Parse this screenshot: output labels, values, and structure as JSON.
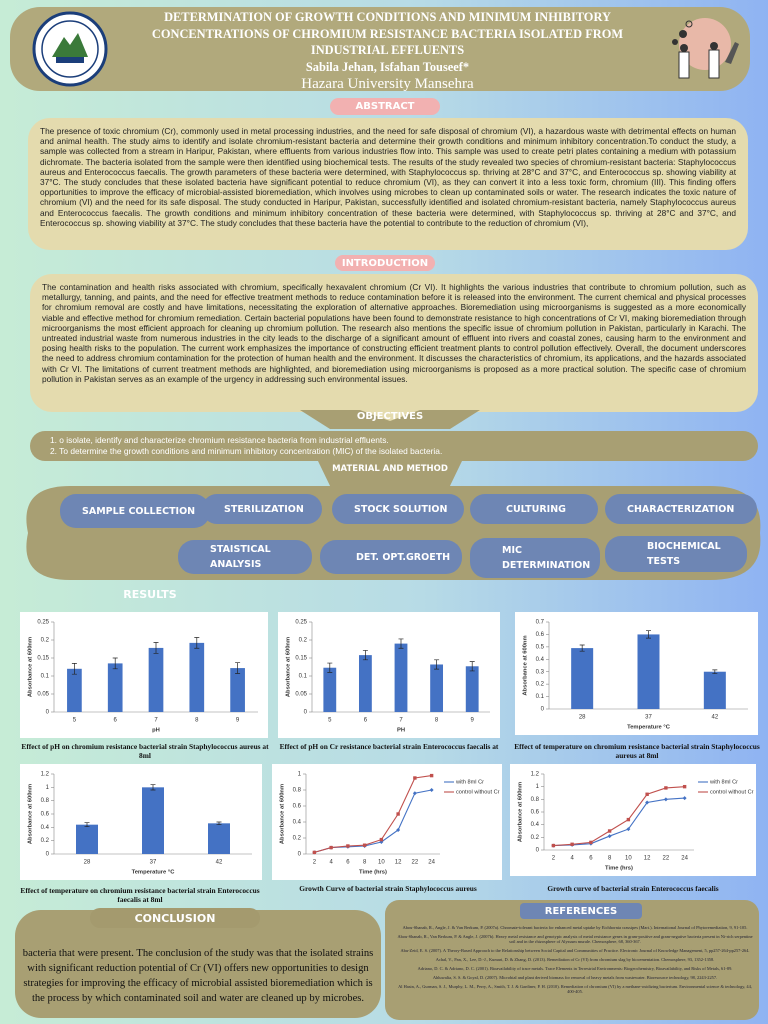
{
  "header": {
    "title_lines": [
      "DETERMINATION OF GROWTH CONDITIONS AND MINIMUM INHIBITORY",
      "CONCENTRATIONS OF CHROMIUM RESISTANCE BACTERIA ISOLATED FROM",
      "INDUSTRIAL EFFLUENTS"
    ],
    "authors": "Sabila Jehan, Isfahan Touseef*",
    "university": "Hazara University Mansehra"
  },
  "abstract": {
    "heading": "ABSTRACT",
    "text": "The presence of toxic chromium (Cr), commonly used in metal processing industries, and the need for safe disposal of chromium (VI), a hazardous waste with detrimental effects on human and animal health. The study aims to identify and isolate chromium-resistant bacteria and determine their growth conditions and minimum inhibitory concentration.To conduct the study, a sample was collected from a stream in Haripur, Pakistan, where effluents from various industries flow into. This sample was used to create petri plates containing a medium with potassium dichromate. The bacteria isolated from the sample were then identified using biochemical tests. The results of the study revealed two species of chromium-resistant bacteria: Staphylococcus aureus and Enterococcus faecalis. The growth parameters of these bacteria were determined, with Staphylococcus sp. thriving at 28°C and 37°C, and Enterococcus sp. showing viability at 37°C. The study concludes that these isolated bacteria have significant potential to reduce chromium (VI), as they can convert it into a less toxic form, chromium (III). This finding offers opportunities to improve the efficacy of microbial-assisted bioremediation, which involves using microbes to clean up contaminated soils or water. The research indicates the toxic nature of chromium (VI) and the need for its safe disposal. The study conducted in Haripur, Pakistan, successfully identified and isolated chromium-resistant bacteria, namely Staphylococcus aureus and Enterococcus faecalis. The growth conditions and minimum inhibitory concentration of these bacteria were determined, with Staphylococcus sp. thriving at 28°C and 37°C, and Enterococcus sp. showing viability at 37°C. The study concludes that these bacteria have the potential to contribute to the reduction of chromium (VI),"
  },
  "introduction": {
    "heading": "INTRODUCTION",
    "text": "The contamination and health risks associated with chromium, specifically hexavalent chromium (Cr VI). It highlights the various industries that contribute to chromium pollution, such as metallurgy, tanning, and paints, and the need for effective treatment methods to reduce contamination before it is released into the environment. The current chemical and physical processes for chromium removal are costly and have limitations, necessitating the exploration of alternative approaches. Bioremediation using microorganisms is suggested as a more economically viable and effective method for chromium remediation. Certain bacterial populations have been found to demonstrate resistance to high concentrations of Cr VI, making bioremediation through microorganisms the most efficient approach for cleaning up chromium pollution. The research also mentions the specific issue of chromium pollution in Pakistan, particularly in Karachi. The untreated industrial waste from numerous industries in the city leads to the discharge of a significant amount of effluent into rivers and coastal zones, causing harm to the environment and posing health risks to the population. The current work emphasizes the importance of constructing efficient treatment plants to control pollution effectively. Overall, the document underscores the need to address chromium contamination for the protection of human health and the environment. It discusses the characteristics of chromium, its applications, and the hazards associated with Cr VI. The limitations of current treatment methods are highlighted, and bioremediation using microorganisms is proposed as a more practical solution. The specific case of chromium pollution in Pakistan serves as an example of the urgency in addressing such environmental issues."
  },
  "objectives": {
    "heading": "OBJECTIVES",
    "items": [
      "1. o isolate, identify and characterize chromium resistance bacteria from industrial effluents.",
      "2. To determine the growth conditions and minimum inhibitory concentration (MIC) of the isolated bacteria."
    ]
  },
  "method": {
    "heading": "MATERIAL AND METHOD",
    "steps": [
      "SAMPLE COLLECTION",
      "STERILIZATION",
      "STOCK SOLUTION",
      "CULTURING",
      "CHARACTERIZATION",
      "STAISTICAL ANALYSIS",
      "DET. OPT.GROETH",
      "MIC DETERMINATION",
      "BIOCHEMICAL TESTS"
    ]
  },
  "results": {
    "heading": "RESULTS"
  },
  "chart_data": [
    {
      "type": "bar",
      "categories": [
        "5",
        "6",
        "7",
        "8",
        "9"
      ],
      "values": [
        0.12,
        0.135,
        0.178,
        0.192,
        0.122
      ],
      "errors": [
        0.015,
        0.015,
        0.015,
        0.015,
        0.015
      ],
      "color": "#4472c4",
      "ylim": [
        0,
        0.25
      ],
      "yticks": [
        0,
        0.05,
        0.1,
        0.15,
        0.2,
        0.25
      ],
      "x_label": "pH",
      "y_label": "Absorbance at 600nm",
      "caption": "Effect of pH on chromium resistance bacterial strain Staphylococcus aureus at 8ml"
    },
    {
      "type": "bar",
      "categories": [
        "5",
        "6",
        "7",
        "8",
        "9"
      ],
      "values": [
        0.123,
        0.158,
        0.19,
        0.132,
        0.127
      ],
      "errors": [
        0.013,
        0.013,
        0.013,
        0.013,
        0.013
      ],
      "color": "#4472c4",
      "ylim": [
        0,
        0.25
      ],
      "yticks": [
        0,
        0.05,
        0.1,
        0.15,
        0.2,
        0.25
      ],
      "x_label": "PH",
      "y_label": "Absorbance at 600nm",
      "caption": "Effect of pH on Cr resistance bacterial strain Enterococcus faecalis at"
    },
    {
      "type": "bar",
      "categories": [
        "28",
        "37",
        "42"
      ],
      "values": [
        0.49,
        0.6,
        0.3
      ],
      "errors": [
        0.025,
        0.03,
        0.015
      ],
      "color": "#4472c4",
      "ylim": [
        0,
        0.7
      ],
      "yticks": [
        0,
        0.1,
        0.2,
        0.3,
        0.4,
        0.5,
        0.6,
        0.7
      ],
      "x_label": "Temperature °C",
      "y_label": "Absorbance at 600nm",
      "caption": "Effect of temperature on chromium resistance bacterial strain Staphylococcus aureus at 8ml"
    },
    {
      "type": "bar",
      "categories": [
        "28",
        "37",
        "42"
      ],
      "values": [
        0.44,
        1.0,
        0.46
      ],
      "errors": [
        0.03,
        0.04,
        0.02
      ],
      "color": "#4472c4",
      "ylim": [
        0,
        1.2
      ],
      "yticks": [
        0,
        0.2,
        0.4,
        0.6,
        0.8,
        1,
        1.2
      ],
      "x_label": "Temperature °C",
      "y_label": "Absorbance at 600nm",
      "caption": "Effect of temperature on chromium resistance bacterial strain Enterococcus faecalis at 8ml"
    },
    {
      "type": "line",
      "categories": [
        "2",
        "4",
        "6",
        "8",
        "10",
        "12",
        "22",
        "24"
      ],
      "series": [
        {
          "name": "with 8ml Cr",
          "color": "#4472c4",
          "values": [
            0.02,
            0.08,
            0.09,
            0.1,
            0.15,
            0.3,
            0.76,
            0.8
          ]
        },
        {
          "name": "control without Cr",
          "color": "#c0504d",
          "values": [
            0.02,
            0.08,
            0.1,
            0.11,
            0.18,
            0.5,
            0.95,
            0.98
          ]
        }
      ],
      "ylim": [
        0,
        1
      ],
      "yticks": [
        0,
        0.2,
        0.4,
        0.6,
        0.8,
        1
      ],
      "x_label": "Time (hrs)",
      "y_label": "Absorbance at 600nm",
      "caption": "Growth Curve of bacterial strain Staphylococcus aureus"
    },
    {
      "type": "line",
      "categories": [
        "2",
        "4",
        "6",
        "8",
        "10",
        "12",
        "22",
        "24"
      ],
      "series": [
        {
          "name": "with 8ml Cr",
          "color": "#4472c4",
          "values": [
            0.07,
            0.08,
            0.1,
            0.22,
            0.33,
            0.75,
            0.8,
            0.82
          ]
        },
        {
          "name": "control without Cr",
          "color": "#c0504d",
          "values": [
            0.07,
            0.09,
            0.12,
            0.3,
            0.48,
            0.88,
            0.98,
            1.0
          ]
        }
      ],
      "ylim": [
        0,
        1.2
      ],
      "yticks": [
        0,
        0.2,
        0.4,
        0.6,
        0.8,
        1,
        1.2
      ],
      "x_label": "Time (hrs)",
      "y_label": "Absorbance at 600nm",
      "caption": "Growth curve of bacterial strain Enterococcus faecalis"
    }
  ],
  "conclusion": {
    "heading": "CONCLUSION",
    "text": "bacteria that were present. The conclusion of the study was that the isolated strains with significant reduction potential of Cr (VI) offers new opportunities to design strategies for improving the efficacy of microbial assisted bioremediation which is the process by which contaminated soil and water are cleaned up by microbes."
  },
  "references": {
    "heading": "REFERENCES",
    "items": [
      "Abou-Shanab, R., Angle, J. & Van Berkum, P. (2007a). Chromate-tolerant bacteria for enhanced metal uptake by Eichhornia crassipes (Mart.). International Journal of Phytoremediation, 9, 91-105.",
      "Abou-Shanab, R., Van Berkum, P. & Angle, J. (2007b). Heavy metal resistance and genotypic analysis of metal resistance genes in gram-positive and gram-negative bacteria present in Ni-rich serpentine soil and in the rhizosphere of Alyssum murale. Chemosphere, 68, 360-367.",
      "Abu-Zeid, E. S. (2007). A Theory-Based Approach to the Relationship between Social Capital and Communities of Practice. Electronic Journal of Knowledge Management, 5, pp257-264-pp257-264.",
      "Achal, V., Pan, X., Lee, D.-J., Kumari, D. & Zhang, D. (2013). Remediation of Cr (VI) from chromium slag by biocementation. Chemosphere, 93, 1352-1358.",
      "Adriano, D. C. & Adriano, D. C. (2001). Bioavailability of trace metals. Trace Elements in Terrestrial Environments: Biogeochemistry, Bioavailability, and Risks of Metals, 61-89.",
      "Ahluwalia, S. S. & Goyal, D. (2007). Microbial and plant derived biomass for removal of heavy metals from wastewater. Bioresource technology, 98, 2243-2257.",
      "Al Hasin, A., Gurman, S. J., Murphy, L. M., Perry, A., Smith, T. J. & Gardiner, P. H. (2010). Remediation of chromium (VI) by a methane-oxidizing bacterium. Environmental science & technology, 44, 400-405."
    ]
  }
}
